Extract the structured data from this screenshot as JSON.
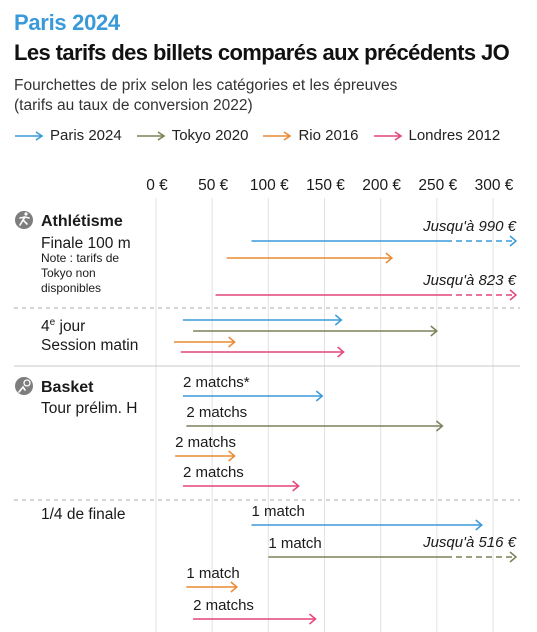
{
  "kicker": "Paris 2024",
  "title": "Les tarifs des billets comparés aux précédents JO",
  "subtitle_line1": "Fourchettes de prix selon les catégories et les épreuves",
  "subtitle_line2": "(tarifs au taux de conversion 2022)",
  "colors": {
    "paris_2024": "#3a9ad9",
    "tokyo_2020": "#7d8059",
    "rio_2016": "#ea8a34",
    "londres_2012": "#e4457e"
  },
  "legend": [
    {
      "label": "Paris 2024",
      "color": "#3a9ad9"
    },
    {
      "label": "Tokyo 2020",
      "color": "#7d8059"
    },
    {
      "label": "Rio 2016",
      "color": "#ea8a34"
    },
    {
      "label": "Londres 2012",
      "color": "#e4457e"
    }
  ],
  "chart_data": {
    "type": "range-arrows",
    "x_unit": "€",
    "xlim": [
      0,
      300
    ],
    "x_ticks": [
      0,
      50,
      100,
      150,
      200,
      250,
      300
    ],
    "x_tick_labels": [
      "0 €",
      "50 €",
      "100 €",
      "150 €",
      "200 €",
      "250 €",
      "300 €"
    ],
    "series": [
      {
        "name": "Paris 2024",
        "color": "#3a9ad9"
      },
      {
        "name": "Tokyo 2020",
        "color": "#7d8059"
      },
      {
        "name": "Rio 2016",
        "color": "#ea8a34"
      },
      {
        "name": "Londres 2012",
        "color": "#e4457e"
      }
    ],
    "sports": [
      {
        "name": "Athlétisme",
        "icon": "athletics-icon"
      },
      {
        "name": "Basket",
        "icon": "basketball-icon"
      }
    ],
    "groups": [
      {
        "sport": "Athlétisme",
        "label": "Finale 100 m",
        "note": [
          "Note : tarifs de",
          "Tokyo non",
          "disponibles"
        ],
        "ranges": [
          {
            "series": "Paris 2024",
            "min": 85,
            "max": 990,
            "capped": true,
            "cap_label": "Jusqu'à 990 €"
          },
          {
            "series": "Rio 2016",
            "min": 63,
            "max": 210
          },
          {
            "series": "Londres 2012",
            "min": 53,
            "max": 823,
            "capped": true,
            "cap_label": "Jusqu'à 823 €"
          }
        ]
      },
      {
        "sport": "Athlétisme",
        "label_pre": "4",
        "label_sup": "e",
        "label_post": " jour",
        "label2": "Session matin",
        "ranges": [
          {
            "series": "Paris 2024",
            "min": 24,
            "max": 165
          },
          {
            "series": "Tokyo 2020",
            "min": 33,
            "max": 250
          },
          {
            "series": "Rio 2016",
            "min": 16,
            "max": 70
          },
          {
            "series": "Londres 2012",
            "min": 22,
            "max": 167
          }
        ]
      },
      {
        "sport": "Basket",
        "label": "Tour prélim. H",
        "ranges": [
          {
            "series": "Paris 2024",
            "min": 24,
            "max": 148,
            "text": "2 matchs*"
          },
          {
            "series": "Tokyo 2020",
            "min": 27,
            "max": 255,
            "text": "2 matchs"
          },
          {
            "series": "Rio 2016",
            "min": 17,
            "max": 70,
            "text": "2 matchs"
          },
          {
            "series": "Londres 2012",
            "min": 24,
            "max": 127,
            "text": "2 matchs"
          }
        ]
      },
      {
        "sport": "Basket",
        "label": "1/4 de finale",
        "ranges": [
          {
            "series": "Paris 2024",
            "min": 85,
            "max": 290,
            "text": "1 match"
          },
          {
            "series": "Tokyo 2020",
            "min": 100,
            "max": 516,
            "capped": true,
            "cap_label": "Jusqu'à 516 €",
            "text": "1 match"
          },
          {
            "series": "Rio 2016",
            "min": 27,
            "max": 72,
            "text": "1 match"
          },
          {
            "series": "Londres 2012",
            "min": 33,
            "max": 142,
            "text": "2 matchs"
          }
        ]
      }
    ]
  }
}
